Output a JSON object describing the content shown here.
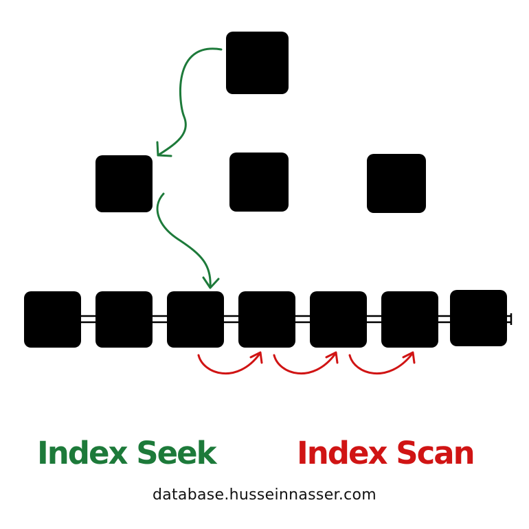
{
  "colors": {
    "node": "#000000",
    "seek": "#1d7a3a",
    "scan": "#d01414",
    "text": "#111111"
  },
  "labels": {
    "seek": "Index Seek",
    "scan": "Index Scan"
  },
  "footer": {
    "url": "database.husseinnasser.com"
  }
}
